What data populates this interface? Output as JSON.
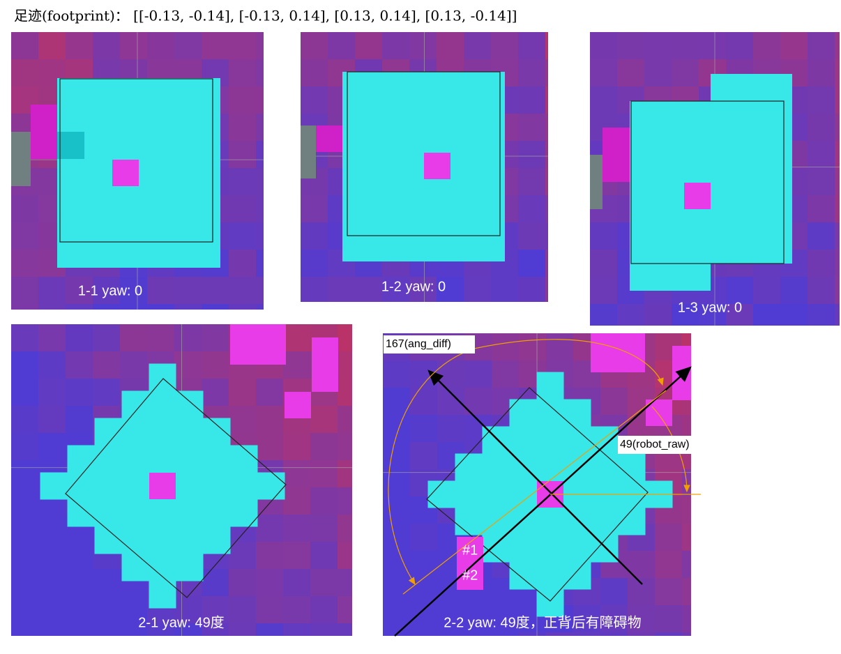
{
  "header": {
    "title": "足迹(footprint)： [[-0.13, -0.14], [-0.13, 0.14], [0.13, 0.14], [0.13, -0.14]]"
  },
  "panels": [
    {
      "label": "1-1 yaw: 0"
    },
    {
      "label": "1-2 yaw: 0"
    },
    {
      "label": "1-3 yaw: 0"
    },
    {
      "label": "2-1 yaw: 49度"
    },
    {
      "label": "2-2 yaw: 49度，正背后有障碍物"
    }
  ],
  "annotations": [
    "167(ang_diff)",
    "49(robot_raw)",
    "#1",
    "#2"
  ]
}
